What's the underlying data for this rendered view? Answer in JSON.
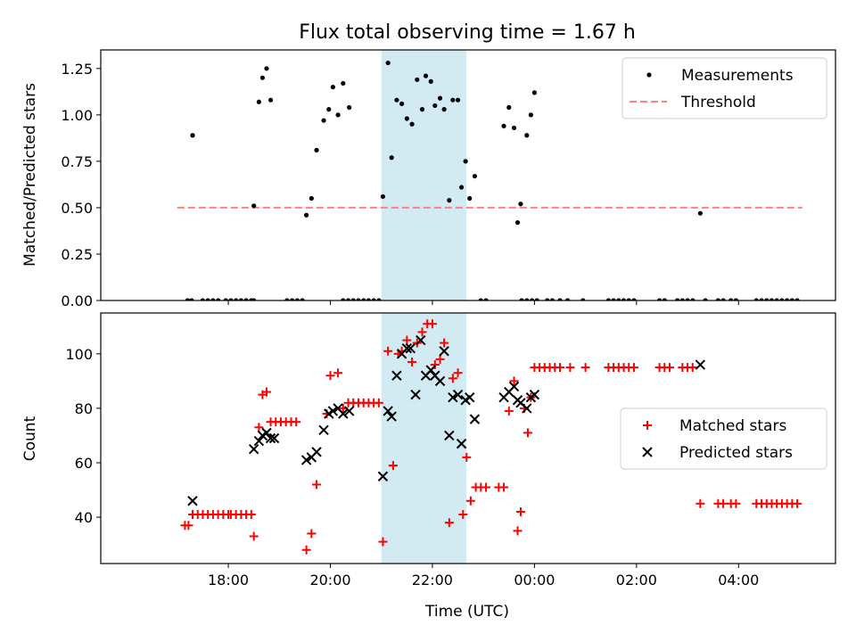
{
  "figure": {
    "title": "Flux total observing time = 1.67 h"
  },
  "chart_data": [
    {
      "type": "scatter",
      "ylabel": "Matched/Predicted stars",
      "xlabel": "",
      "ylim": [
        0,
        1.35
      ],
      "yticks": [
        "0.00",
        "0.25",
        "0.50",
        "0.75",
        "1.00",
        "1.25"
      ],
      "ytick_values": [
        0,
        0.25,
        0.5,
        0.75,
        1.0,
        1.25
      ],
      "x_unit": "hours relative to 00:00 UTC",
      "xlim": [
        -8.5,
        5.9
      ],
      "xtick_values": [
        -6,
        -4,
        -2,
        0,
        2,
        4
      ],
      "shaded_interval": {
        "x0": "21:00",
        "x1": "22:40",
        "color": "#add8e6"
      },
      "threshold": {
        "value": 0.5,
        "x_start": "17:00",
        "x_end": "05:15",
        "color": "#ff8080",
        "style": "dashed"
      },
      "legend": {
        "position": "top-right",
        "entries": [
          "Measurements",
          "Threshold"
        ]
      },
      "series": [
        {
          "name": "Measurements",
          "color": "#000000",
          "marker": "dot",
          "points": [
            [
              -6.7,
              0.89
            ],
            [
              -5.5,
              0.51
            ],
            [
              -5.4,
              1.07
            ],
            [
              -5.33,
              1.2
            ],
            [
              -5.25,
              1.25
            ],
            [
              -5.17,
              1.08
            ],
            [
              -4.47,
              0.46
            ],
            [
              -4.37,
              0.55
            ],
            [
              -4.27,
              0.81
            ],
            [
              -4.13,
              0.97
            ],
            [
              -4.03,
              1.03
            ],
            [
              -3.95,
              1.15
            ],
            [
              -3.85,
              1.0
            ],
            [
              -3.75,
              1.17
            ],
            [
              -3.63,
              1.04
            ],
            [
              -2.97,
              0.56
            ],
            [
              -2.87,
              1.28
            ],
            [
              -2.8,
              0.77
            ],
            [
              -2.7,
              1.08
            ],
            [
              -2.6,
              1.06
            ],
            [
              -2.5,
              0.98
            ],
            [
              -2.4,
              0.95
            ],
            [
              -2.3,
              1.19
            ],
            [
              -2.2,
              1.03
            ],
            [
              -2.13,
              1.21
            ],
            [
              -2.03,
              1.18
            ],
            [
              -1.95,
              1.05
            ],
            [
              -1.85,
              1.09
            ],
            [
              -1.77,
              1.03
            ],
            [
              -1.67,
              0.54
            ],
            [
              -1.6,
              1.08
            ],
            [
              -1.5,
              1.08
            ],
            [
              -1.43,
              0.61
            ],
            [
              -1.35,
              0.75
            ],
            [
              -1.27,
              0.55
            ],
            [
              -1.17,
              0.67
            ],
            [
              -0.6,
              0.94
            ],
            [
              -0.5,
              1.04
            ],
            [
              -0.4,
              0.93
            ],
            [
              -0.33,
              0.42
            ],
            [
              -0.27,
              0.52
            ],
            [
              -0.15,
              0.89
            ],
            [
              -0.07,
              1.0
            ],
            [
              0.0,
              1.12
            ],
            [
              3.25,
              0.47
            ]
          ],
          "zero_points_x": [
            -6.8,
            -6.72,
            -6.5,
            -6.4,
            -6.3,
            -6.2,
            -6.05,
            -5.95,
            -5.85,
            -5.75,
            -5.65,
            -5.55,
            -5.5,
            -4.85,
            -4.75,
            -4.65,
            -4.55,
            -3.75,
            -3.65,
            -3.55,
            -3.45,
            -3.35,
            -3.25,
            -3.15,
            -3.05,
            -1.05,
            -0.95,
            -0.25,
            -0.15,
            -0.05,
            0.05,
            0.25,
            0.35,
            0.5,
            0.65,
            0.95,
            1.45,
            1.55,
            1.65,
            1.75,
            1.85,
            1.95,
            2.45,
            2.55,
            2.8,
            2.9,
            3.0,
            3.1,
            3.35,
            3.6,
            3.7,
            3.85,
            3.95,
            4.35,
            4.45,
            4.55,
            4.65,
            4.75,
            4.85,
            4.95,
            5.05,
            5.15
          ]
        }
      ]
    },
    {
      "type": "scatter",
      "ylabel": "Count",
      "xlabel": "Time (UTC)",
      "ylim": [
        23,
        115
      ],
      "ytick_values": [
        40,
        60,
        80,
        100
      ],
      "yticks": [
        "40",
        "60",
        "80",
        "100"
      ],
      "x_unit": "hours relative to 00:00 UTC",
      "xlim": [
        -8.5,
        5.9
      ],
      "xtick_values": [
        -6,
        -4,
        -2,
        0,
        2,
        4
      ],
      "xticks": [
        "18:00",
        "20:00",
        "22:00",
        "00:00",
        "02:00",
        "04:00"
      ],
      "shaded_interval": {
        "x0": "21:00",
        "x1": "22:40",
        "color": "#add8e6"
      },
      "legend": {
        "position": "center-right",
        "entries": [
          "Matched stars",
          "Predicted stars"
        ]
      },
      "series": [
        {
          "name": "Matched stars",
          "color": "#ff0000",
          "marker": "plus",
          "points": [
            [
              -6.85,
              37
            ],
            [
              -6.78,
              37
            ],
            [
              -6.7,
              41
            ],
            [
              -6.6,
              41
            ],
            [
              -6.5,
              41
            ],
            [
              -6.4,
              41
            ],
            [
              -6.3,
              41
            ],
            [
              -6.2,
              41
            ],
            [
              -6.1,
              41
            ],
            [
              -6.0,
              41
            ],
            [
              -5.95,
              41
            ],
            [
              -5.85,
              41
            ],
            [
              -5.75,
              41
            ],
            [
              -5.65,
              41
            ],
            [
              -5.55,
              41
            ],
            [
              -5.5,
              33
            ],
            [
              -5.4,
              73
            ],
            [
              -5.33,
              85
            ],
            [
              -5.25,
              86
            ],
            [
              -5.17,
              75
            ],
            [
              -5.07,
              75
            ],
            [
              -4.97,
              75
            ],
            [
              -4.87,
              75
            ],
            [
              -4.77,
              75
            ],
            [
              -4.67,
              75
            ],
            [
              -4.47,
              28
            ],
            [
              -4.37,
              34
            ],
            [
              -4.27,
              52
            ],
            [
              -4.07,
              78
            ],
            [
              -4.0,
              92
            ],
            [
              -3.85,
              93
            ],
            [
              -3.75,
              80
            ],
            [
              -3.65,
              82
            ],
            [
              -3.55,
              82
            ],
            [
              -3.45,
              82
            ],
            [
              -3.35,
              82
            ],
            [
              -3.25,
              82
            ],
            [
              -3.15,
              82
            ],
            [
              -3.05,
              82
            ],
            [
              -2.97,
              31
            ],
            [
              -2.87,
              101
            ],
            [
              -2.77,
              59
            ],
            [
              -2.67,
              100
            ],
            [
              -2.6,
              101
            ],
            [
              -2.5,
              105
            ],
            [
              -2.4,
              97
            ],
            [
              -2.3,
              104
            ],
            [
              -2.2,
              108
            ],
            [
              -2.1,
              111
            ],
            [
              -2.0,
              111
            ],
            [
              -1.95,
              96
            ],
            [
              -1.85,
              98
            ],
            [
              -1.77,
              104
            ],
            [
              -1.67,
              38
            ],
            [
              -1.6,
              91
            ],
            [
              -1.5,
              93
            ],
            [
              -1.4,
              41
            ],
            [
              -1.33,
              62
            ],
            [
              -1.25,
              46
            ],
            [
              -1.15,
              51
            ],
            [
              -1.05,
              51
            ],
            [
              -0.95,
              51
            ],
            [
              -0.7,
              51
            ],
            [
              -0.6,
              51
            ],
            [
              -0.5,
              79
            ],
            [
              -0.4,
              90
            ],
            [
              -0.33,
              35
            ],
            [
              -0.27,
              42
            ],
            [
              -0.2,
              80
            ],
            [
              -0.13,
              71
            ],
            [
              -0.07,
              84
            ],
            [
              -0.0,
              95
            ],
            [
              0.1,
              95
            ],
            [
              0.2,
              95
            ],
            [
              0.3,
              95
            ],
            [
              0.4,
              95
            ],
            [
              0.5,
              95
            ],
            [
              0.7,
              95
            ],
            [
              1.0,
              95
            ],
            [
              1.45,
              95
            ],
            [
              1.55,
              95
            ],
            [
              1.65,
              95
            ],
            [
              1.75,
              95
            ],
            [
              1.85,
              95
            ],
            [
              1.95,
              95
            ],
            [
              2.45,
              95
            ],
            [
              2.55,
              95
            ],
            [
              2.65,
              95
            ],
            [
              2.9,
              95
            ],
            [
              3.0,
              95
            ],
            [
              3.1,
              95
            ],
            [
              3.25,
              45
            ],
            [
              3.6,
              45
            ],
            [
              3.7,
              45
            ],
            [
              3.85,
              45
            ],
            [
              3.95,
              45
            ],
            [
              4.35,
              45
            ],
            [
              4.45,
              45
            ],
            [
              4.55,
              45
            ],
            [
              4.65,
              45
            ],
            [
              4.75,
              45
            ],
            [
              4.85,
              45
            ],
            [
              4.95,
              45
            ],
            [
              5.05,
              45
            ],
            [
              5.15,
              45
            ]
          ]
        },
        {
          "name": "Predicted stars",
          "color": "#000000",
          "marker": "x",
          "points": [
            [
              -6.7,
              46
            ],
            [
              -5.5,
              65
            ],
            [
              -5.4,
              68
            ],
            [
              -5.33,
              70
            ],
            [
              -5.25,
              71
            ],
            [
              -5.17,
              69
            ],
            [
              -5.1,
              69
            ],
            [
              -4.47,
              61
            ],
            [
              -4.37,
              62
            ],
            [
              -4.27,
              64
            ],
            [
              -4.13,
              72
            ],
            [
              -4.03,
              78
            ],
            [
              -3.95,
              79
            ],
            [
              -3.85,
              80
            ],
            [
              -3.75,
              78
            ],
            [
              -3.63,
              79
            ],
            [
              -2.97,
              55
            ],
            [
              -2.87,
              79
            ],
            [
              -2.8,
              77
            ],
            [
              -2.7,
              92
            ],
            [
              -2.6,
              100
            ],
            [
              -2.5,
              102
            ],
            [
              -2.43,
              102
            ],
            [
              -2.33,
              85
            ],
            [
              -2.23,
              105
            ],
            [
              -2.13,
              92
            ],
            [
              -2.03,
              94
            ],
            [
              -1.95,
              92
            ],
            [
              -1.85,
              90
            ],
            [
              -1.77,
              101
            ],
            [
              -1.67,
              70
            ],
            [
              -1.6,
              84
            ],
            [
              -1.5,
              85
            ],
            [
              -1.43,
              67
            ],
            [
              -1.35,
              83
            ],
            [
              -1.27,
              84
            ],
            [
              -1.17,
              76
            ],
            [
              -0.6,
              84
            ],
            [
              -0.5,
              86
            ],
            [
              -0.4,
              88
            ],
            [
              -0.33,
              83
            ],
            [
              -0.27,
              82
            ],
            [
              -0.15,
              80
            ],
            [
              -0.07,
              84
            ],
            [
              0.0,
              85
            ],
            [
              3.25,
              96
            ]
          ]
        }
      ]
    }
  ]
}
